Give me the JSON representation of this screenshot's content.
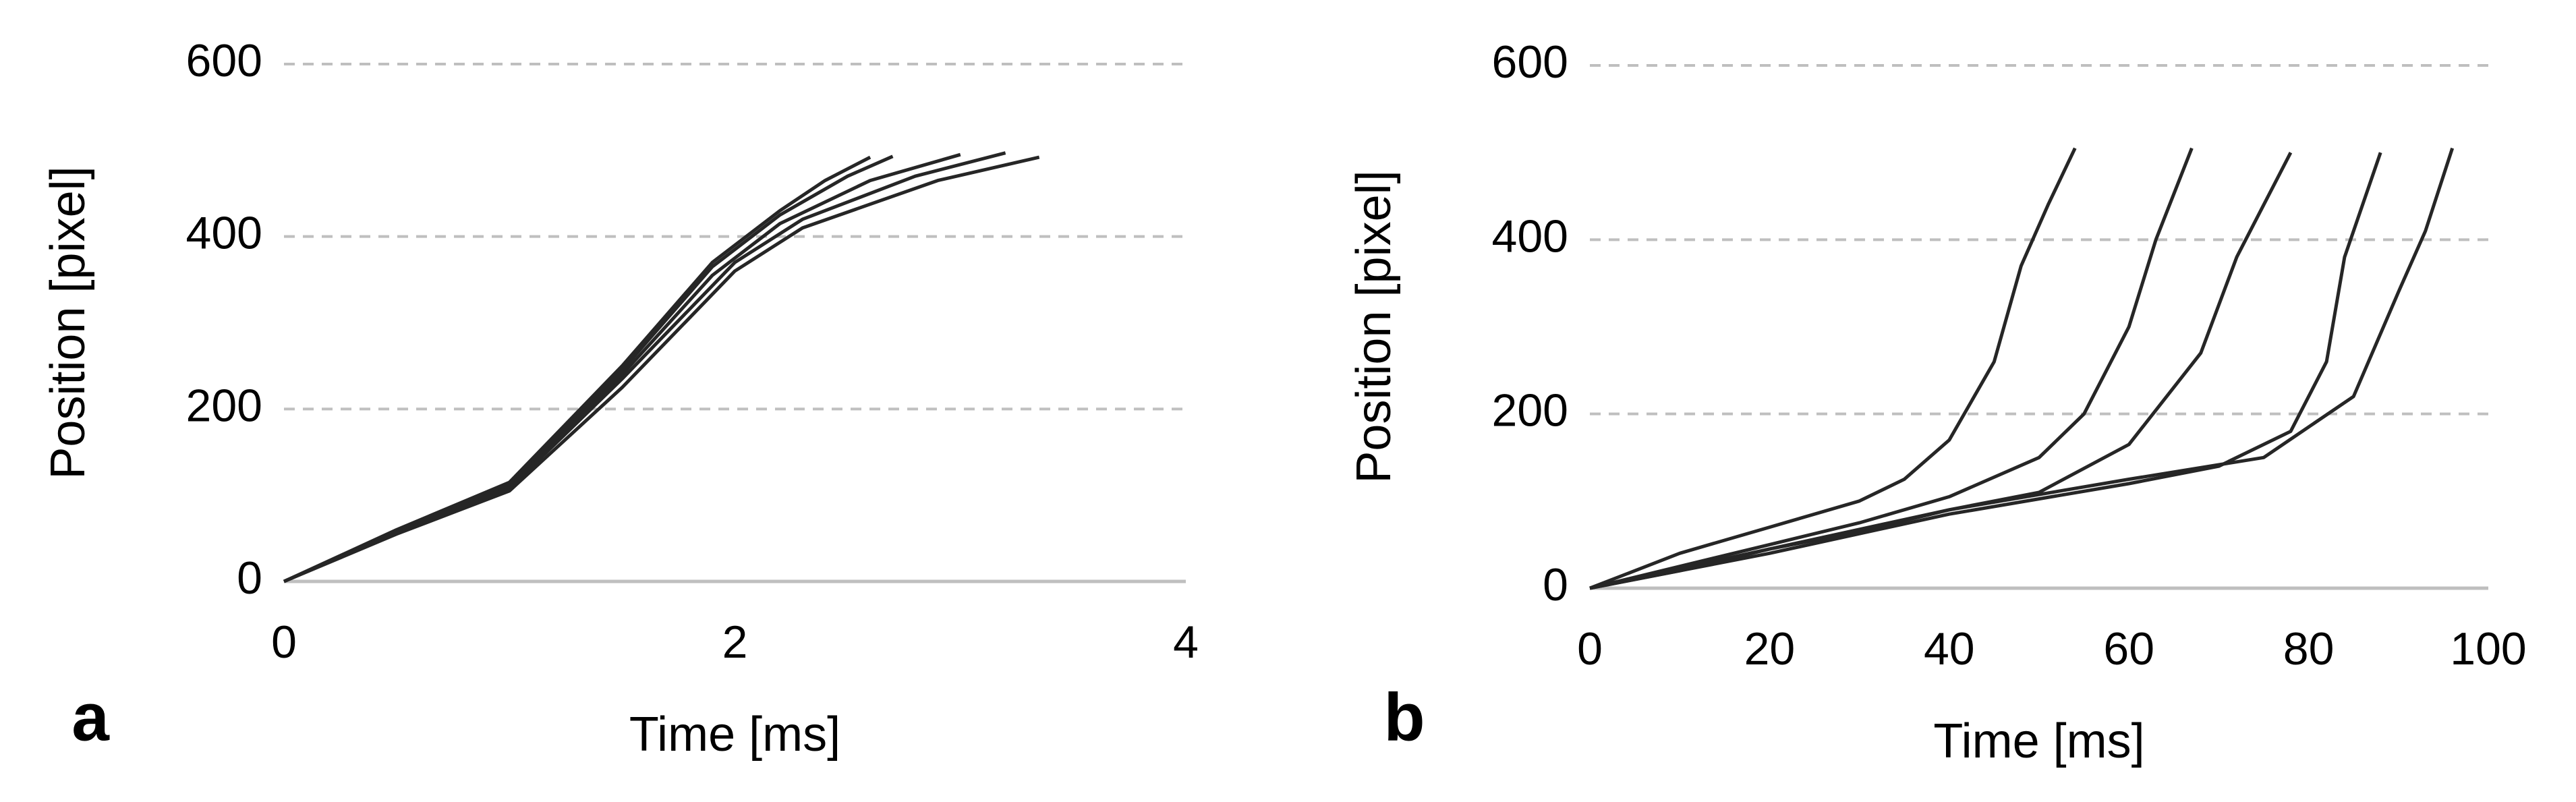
{
  "chart_data": [
    {
      "type": "line",
      "panel_label": "a",
      "x_label": "Time [ms]",
      "y_label": "Position [pixel]",
      "xlim": [
        0,
        4
      ],
      "xticks": [
        0,
        2,
        4
      ],
      "ylim": [
        0,
        600
      ],
      "yticks": [
        0,
        200,
        400,
        600
      ],
      "grid": true,
      "series": [
        {
          "color": "#262626",
          "x": [
            0,
            0.5,
            1,
            1.5,
            1.9,
            2.2,
            2.4,
            2.6
          ],
          "values": [
            0,
            60,
            115,
            250,
            370,
            430,
            465,
            492
          ]
        },
        {
          "color": "#262626",
          "x": [
            0,
            0.5,
            1,
            1.5,
            1.9,
            2.2,
            2.5,
            2.7
          ],
          "values": [
            0,
            58,
            112,
            245,
            365,
            425,
            470,
            493
          ]
        },
        {
          "color": "#262626",
          "x": [
            0,
            0.5,
            1,
            1.5,
            1.9,
            2.2,
            2.6,
            3.0
          ],
          "values": [
            0,
            57,
            110,
            240,
            355,
            415,
            465,
            495
          ]
        },
        {
          "color": "#262626",
          "x": [
            0,
            0.5,
            1,
            1.5,
            2,
            2.3,
            2.8,
            3.2
          ],
          "values": [
            0,
            56,
            108,
            235,
            370,
            420,
            470,
            497
          ]
        },
        {
          "color": "#262626",
          "x": [
            0,
            0.5,
            1,
            1.5,
            2,
            2.3,
            2.9,
            3.35
          ],
          "values": [
            0,
            55,
            105,
            225,
            360,
            410,
            465,
            492
          ]
        }
      ]
    },
    {
      "type": "line",
      "panel_label": "b",
      "x_label": "Time [ms]",
      "y_label": "Position [pixel]",
      "xlim": [
        0,
        100
      ],
      "xticks": [
        0,
        20,
        40,
        60,
        80,
        100
      ],
      "ylim": [
        0,
        600
      ],
      "yticks": [
        0,
        200,
        400,
        600
      ],
      "grid": true,
      "series": [
        {
          "color": "#262626",
          "x": [
            0,
            10,
            20,
            30,
            35,
            40,
            45,
            48,
            51,
            54
          ],
          "values": [
            0,
            40,
            70,
            100,
            125,
            170,
            260,
            370,
            440,
            505
          ]
        },
        {
          "color": "#262626",
          "x": [
            0,
            10,
            20,
            30,
            40,
            50,
            55,
            60,
            63,
            67
          ],
          "values": [
            0,
            25,
            50,
            75,
            105,
            150,
            200,
            300,
            400,
            505
          ]
        },
        {
          "color": "#262626",
          "x": [
            0,
            10,
            20,
            30,
            40,
            50,
            60,
            68,
            72,
            78
          ],
          "values": [
            0,
            20,
            45,
            65,
            90,
            110,
            165,
            270,
            380,
            500
          ]
        },
        {
          "color": "#262626",
          "x": [
            0,
            20,
            40,
            60,
            70,
            78,
            82,
            84,
            88
          ],
          "values": [
            0,
            40,
            85,
            120,
            140,
            180,
            260,
            380,
            500
          ]
        },
        {
          "color": "#262626",
          "x": [
            0,
            20,
            40,
            60,
            75,
            85,
            90,
            93,
            96
          ],
          "values": [
            0,
            45,
            90,
            125,
            150,
            220,
            340,
            410,
            505
          ]
        }
      ]
    }
  ]
}
